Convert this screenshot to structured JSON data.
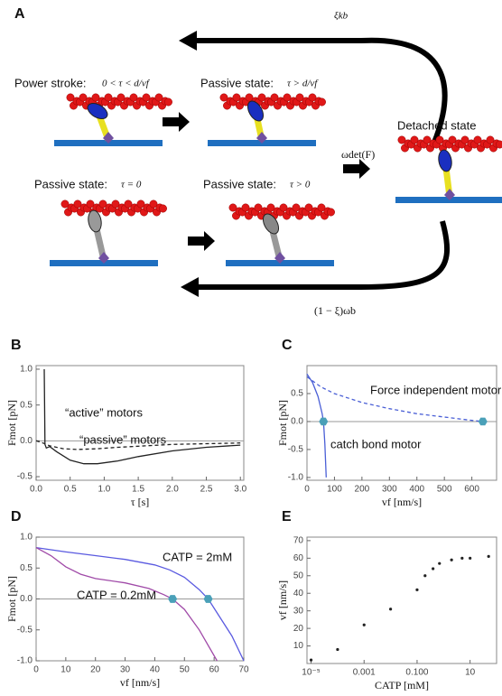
{
  "diagram": {
    "panel": "A",
    "top_rate": "ξkb",
    "power_stroke": "Power stroke:",
    "power_cond": "0 < τ < d/vf",
    "passive1": "Passive state:",
    "passive1_cond": "τ > d/vf",
    "detached": "Detached state",
    "det_rate": "ωdet(F)",
    "passive2": "Passive state:",
    "passive2_cond": "τ = 0",
    "passive3": "Passive state:",
    "passive3_cond": "τ > 0",
    "bottom_rate": "(1 − ξ)ωb"
  },
  "chart_data": [
    {
      "type": "line",
      "panel": "B",
      "xlabel": "τ [s]",
      "ylabel": "Fmot [pN]",
      "xlim": [
        0,
        3.05
      ],
      "ylim": [
        -0.55,
        1.05
      ],
      "xticks": [
        {
          "value": 0,
          "label": "0.0"
        },
        0.5,
        {
          "value": 1,
          "label": "1.0"
        },
        1.5,
        {
          "value": 2,
          "label": "2.0"
        },
        2.5,
        {
          "value": 3,
          "label": "3.0"
        }
      ],
      "yticks": [
        -0.5,
        {
          "value": 0,
          "label": "0.0"
        },
        0.5,
        {
          "value": 1,
          "label": "1.0"
        }
      ],
      "annotations": [
        "“active” motors",
        "“passive” motors"
      ],
      "series": [
        {
          "color": "#222222",
          "dash": false,
          "x": [
            0.12,
            0.125,
            0.13,
            0.15,
            0.2,
            0.3,
            0.5,
            0.7,
            0.9,
            1.2,
            1.5,
            2.0,
            2.5,
            3.0
          ],
          "values": [
            1.0,
            0.5,
            -0.05,
            -0.1,
            -0.08,
            -0.15,
            -0.27,
            -0.32,
            -0.32,
            -0.28,
            -0.22,
            -0.14,
            -0.09,
            -0.06
          ]
        },
        {
          "color": "#222222",
          "dash": true,
          "x": [
            0,
            0.1,
            0.2,
            0.4,
            0.6,
            0.9,
            1.2,
            1.6,
            2.0,
            2.5,
            3.0
          ],
          "values": [
            0,
            -0.03,
            -0.07,
            -0.11,
            -0.12,
            -0.11,
            -0.09,
            -0.07,
            -0.05,
            -0.04,
            -0.03
          ]
        }
      ]
    },
    {
      "type": "line",
      "panel": "C",
      "xlabel": "vf [nm/s]",
      "ylabel": "Fmot [pN]",
      "xlim": [
        0,
        690
      ],
      "ylim": [
        -1.05,
        1.0
      ],
      "xticks": [
        0,
        100,
        200,
        300,
        400,
        500,
        600
      ],
      "yticks": [
        {
          "value": -1,
          "label": "-1.0"
        },
        -0.5,
        {
          "value": 0,
          "label": "0.0"
        },
        0.5
      ],
      "annotations": [
        "Force independent motor",
        "catch bond motor"
      ],
      "series": [
        {
          "color": "#4a5fd6",
          "dash": true,
          "x": [
            0,
            50,
            100,
            200,
            300,
            400,
            500,
            600,
            640
          ],
          "values": [
            0.8,
            0.62,
            0.5,
            0.34,
            0.23,
            0.14,
            0.08,
            0.02,
            0
          ]
        },
        {
          "color": "#4a5fd6",
          "dash": false,
          "x": [
            0,
            20,
            40,
            55,
            60,
            65,
            70
          ],
          "values": [
            0.85,
            0.7,
            0.45,
            0.15,
            0,
            -0.4,
            -1.0
          ]
        },
        {
          "color": "#4aa0b8",
          "marker": true,
          "x": [
            60,
            640
          ],
          "values": [
            0,
            0
          ]
        }
      ]
    },
    {
      "type": "line",
      "panel": "D",
      "xlabel": "vf [nm/s]",
      "ylabel": "Fmot [pN]",
      "xlim": [
        0,
        70
      ],
      "ylim": [
        -1.0,
        1.0
      ],
      "xticks": [
        0,
        10,
        20,
        30,
        40,
        50,
        60,
        70
      ],
      "yticks": [
        {
          "value": -1,
          "label": "-1.0"
        },
        -0.5,
        {
          "value": 0,
          "label": "0.0"
        },
        0.5,
        {
          "value": 1,
          "label": "1.0"
        }
      ],
      "annotations": [
        "CATP = 2mM",
        "CATP = 0.2mM"
      ],
      "series": [
        {
          "color": "#5a5ae0",
          "dash": false,
          "x": [
            0,
            10,
            20,
            30,
            40,
            45,
            50,
            55,
            58,
            62,
            66,
            70
          ],
          "values": [
            0.83,
            0.76,
            0.7,
            0.64,
            0.55,
            0.47,
            0.35,
            0.15,
            0,
            -0.3,
            -0.6,
            -1.0
          ]
        },
        {
          "color": "#a04aa8",
          "dash": false,
          "x": [
            0,
            5,
            10,
            15,
            20,
            30,
            38,
            43,
            46,
            50,
            55,
            61
          ],
          "values": [
            0.83,
            0.7,
            0.52,
            0.4,
            0.33,
            0.26,
            0.17,
            0.07,
            0,
            -0.17,
            -0.5,
            -1.0
          ]
        },
        {
          "color": "#4aa0b8",
          "marker": true,
          "x": [
            46,
            58
          ],
          "values": [
            0,
            0
          ]
        }
      ]
    },
    {
      "type": "scatter",
      "panel": "E",
      "xlabel": "CATP [mM]",
      "ylabel": "vf [nm/s]",
      "xscale": "log",
      "xlim": [
        7e-06,
        100
      ],
      "ylim": [
        0,
        72
      ],
      "xticks": [
        {
          "value": 1e-05,
          "label": "10⁻⁵"
        },
        0.001,
        {
          "value": 0.1,
          "label": "0.100"
        },
        10
      ],
      "yticks": [
        10,
        20,
        30,
        40,
        50,
        60,
        70
      ],
      "series": [
        {
          "color": "#222222",
          "x": [
            1e-05,
            0.0001,
            0.001,
            0.01,
            0.1,
            0.2,
            0.4,
            0.7,
            2,
            5,
            10,
            50
          ],
          "values": [
            2,
            8,
            22,
            31,
            42,
            50,
            54,
            57,
            59,
            60,
            60,
            61
          ]
        }
      ]
    }
  ]
}
